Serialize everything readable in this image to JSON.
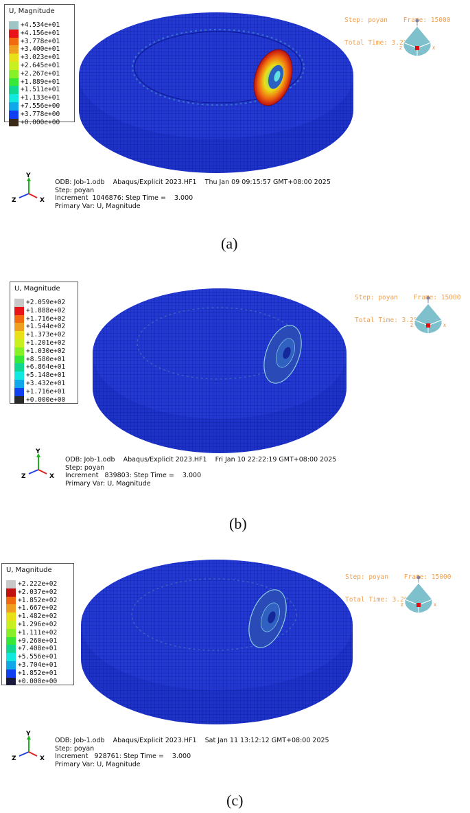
{
  "panels": [
    {
      "legend": {
        "title": "U, Magnitude",
        "values": [
          "+4.534e+01",
          "+4.156e+01",
          "+3.778e+01",
          "+3.400e+01",
          "+3.023e+01",
          "+2.645e+01",
          "+2.267e+01",
          "+1.889e+01",
          "+1.511e+01",
          "+1.133e+01",
          "+7.556e+00",
          "+3.778e+00",
          "+0.000e+00"
        ],
        "colors": [
          "#9fc6c6",
          "#e8141a",
          "#f06a10",
          "#f0a020",
          "#e8e018",
          "#c8f020",
          "#88f028",
          "#38e838",
          "#10d890",
          "#10e8e0",
          "#10a8e8",
          "#1040f0",
          "#3a2a18"
        ]
      },
      "step_line1": "Step: poyan    Frame: 15000",
      "step_line2": "Total Time: 3.200000",
      "info": {
        "line1": "ODB: Job-1.odb    Abaqus/Explicit 2023.HF1    Thu Jan 09 09:15:57 GMT+08:00 2025",
        "line2": "Step: poyan",
        "line3": "Increment  1046876: Step Time =    3.000",
        "line4": "Primary Var: U, Magnitude"
      },
      "caption": "(a)",
      "axes": {
        "y": "Y",
        "z": "Z",
        "x": "X"
      }
    },
    {
      "legend": {
        "title": "U, Magnitude",
        "values": [
          "+2.059e+02",
          "+1.888e+02",
          "+1.716e+02",
          "+1.544e+02",
          "+1.373e+02",
          "+1.201e+02",
          "+1.030e+02",
          "+8.580e+01",
          "+6.864e+01",
          "+5.148e+01",
          "+3.432e+01",
          "+1.716e+01",
          "+0.000e+00"
        ],
        "colors": [
          "#c8c8c8",
          "#e8141a",
          "#f06a10",
          "#f0a020",
          "#e8e018",
          "#c8f020",
          "#88f028",
          "#38e838",
          "#10d890",
          "#10e8e0",
          "#10a8e8",
          "#1040f0",
          "#2a2a2a"
        ]
      },
      "step_line1": "Step: poyan    Frame: 15000",
      "step_line2": "Total Time: 3.200000",
      "info": {
        "line1": "ODB: Job-1.odb    Abaqus/Explicit 2023.HF1    Fri Jan 10 22:22:19 GMT+08:00 2025",
        "line2": "Step: poyan",
        "line3": "Increment   839803: Step Time =    3.000",
        "line4": "Primary Var: U, Magnitude"
      },
      "caption": "(b)",
      "axes": {
        "y": "Y",
        "z": "Z",
        "x": "X"
      }
    },
    {
      "legend": {
        "title": "U, Magnitude",
        "values": [
          "+2.222e+02",
          "+2.037e+02",
          "+1.852e+02",
          "+1.667e+02",
          "+1.482e+02",
          "+1.296e+02",
          "+1.111e+02",
          "+9.260e+01",
          "+7.408e+01",
          "+5.556e+01",
          "+3.704e+01",
          "+1.852e+01",
          "+0.000e+00"
        ],
        "colors": [
          "#c8c8c8",
          "#c01010",
          "#f06a10",
          "#f0a020",
          "#e8e018",
          "#c8f020",
          "#88f028",
          "#38e838",
          "#10d890",
          "#10e8e0",
          "#10a8e8",
          "#1040f0",
          "#1a1a3a"
        ]
      },
      "step_line1": "Step: poyan    Frame: 15000",
      "step_line2": "Total Time: 3.200000",
      "info": {
        "line1": "ODB: Job-1.odb    Abaqus/Explicit 2023.HF1    Sat Jan 11 13:12:12 GMT+08:00 2025",
        "line2": "Step: poyan",
        "line3": "Increment   928761: Step Time =    3.000",
        "line4": "Primary Var: U, Magnitude"
      },
      "caption": "(c)",
      "axes": {
        "y": "Y",
        "z": "Z",
        "x": "X"
      }
    }
  ]
}
